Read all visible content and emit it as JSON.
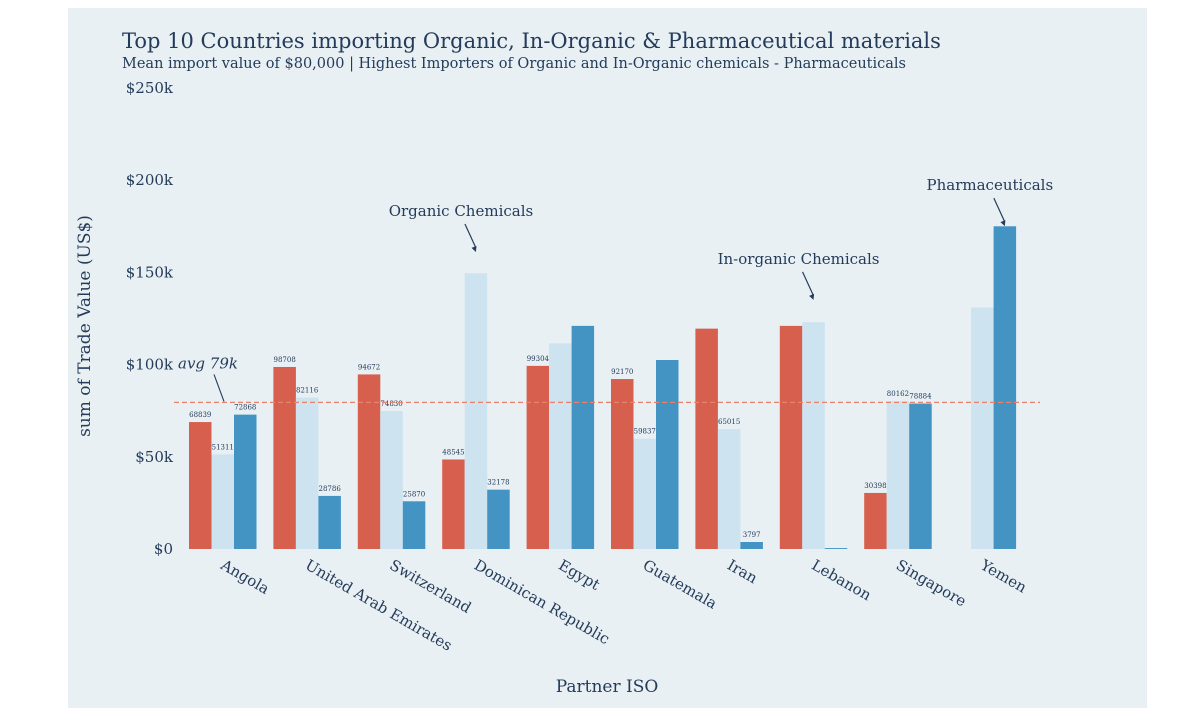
{
  "colors": {
    "background": "#e8f0f4",
    "organic": "#d65f4d",
    "inorganic": "#cde3f0",
    "pharma": "#4393c3",
    "avg_line": "#e8826a",
    "text": "#243b5a"
  },
  "chart_data": {
    "type": "bar",
    "title": "Top 10 Countries importing Organic, In-Organic & Pharmaceutical materials",
    "subtitle": "Mean import value of $80,000 | Highest Importers of Organic and In-Organic chemicals - Pharmaceuticals",
    "xlabel": "Partner ISO",
    "ylabel": "sum of Trade Value (US$)",
    "ylim": [
      0,
      250000
    ],
    "yticks": [
      0,
      50000,
      100000,
      150000,
      200000,
      250000
    ],
    "ytick_labels": [
      "$0",
      "$50k",
      "$100k",
      "$150k",
      "$200k",
      "$250k"
    ],
    "categories": [
      "Angola",
      "United Arab Emirates",
      "Switzerland",
      "Dominican Republic",
      "Egypt",
      "Guatemala",
      "Iran",
      "Lebanon",
      "Singapore",
      "Yemen"
    ],
    "series": [
      {
        "key": "organic",
        "values": [
          68839,
          98708,
          94672,
          48545,
          99304,
          92170,
          119500,
          121000,
          30398,
          null
        ],
        "labels": [
          "68839",
          "98708",
          "94672",
          "48545",
          "99304",
          "92170",
          "",
          "",
          "30398",
          ""
        ]
      },
      {
        "key": "inorganic",
        "values": [
          51311,
          82116,
          74830,
          149500,
          111500,
          59837,
          65015,
          123000,
          80162,
          131000
        ],
        "labels": [
          "51311",
          "82116",
          "74830",
          "",
          "",
          "59837",
          "65015",
          "",
          "80162",
          ""
        ]
      },
      {
        "key": "pharma",
        "values": [
          72868,
          28786,
          25870,
          32178,
          121000,
          102500,
          3797,
          500,
          78884,
          175000
        ],
        "labels": [
          "72868",
          "28786",
          "25870",
          "32178",
          "",
          "",
          "3797",
          "",
          "78884",
          ""
        ]
      }
    ],
    "average": {
      "value": 79500,
      "label": "avg 79k"
    },
    "annotations": [
      {
        "text": "Organic Chemicals",
        "category": 3,
        "series": 1,
        "value": 160000
      },
      {
        "text": "In-organic Chemicals",
        "category": 7,
        "series": 1,
        "value": 134000
      },
      {
        "text": "Pharmaceuticals",
        "category": 9,
        "series": 2,
        "value": 174000
      }
    ]
  }
}
